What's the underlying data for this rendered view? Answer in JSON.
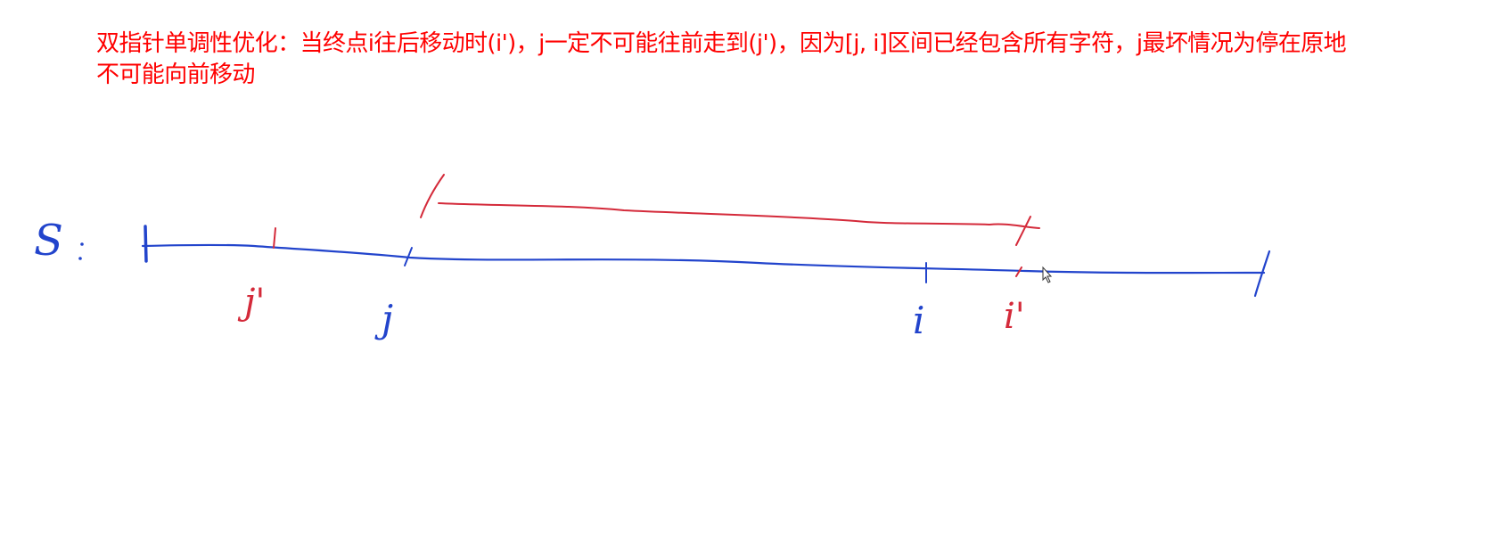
{
  "note": {
    "line1": "双指针单调性优化：当终点i往后移动时(i')，j一定不可能往前走到(j')，因为[j, i]区间已经包含所有字符，j最坏情况为停在原地",
    "line2": "不可能向前移动"
  },
  "colors": {
    "note": "#ff0000",
    "pen_blue": "#2244cc",
    "pen_red": "#d42a3a"
  },
  "labels": {
    "s": "S",
    "j_prime": "j'",
    "j": "j",
    "i": "i",
    "i_prime": "i'"
  },
  "icons": {
    "cursor": "mouse-pointer-icon"
  }
}
